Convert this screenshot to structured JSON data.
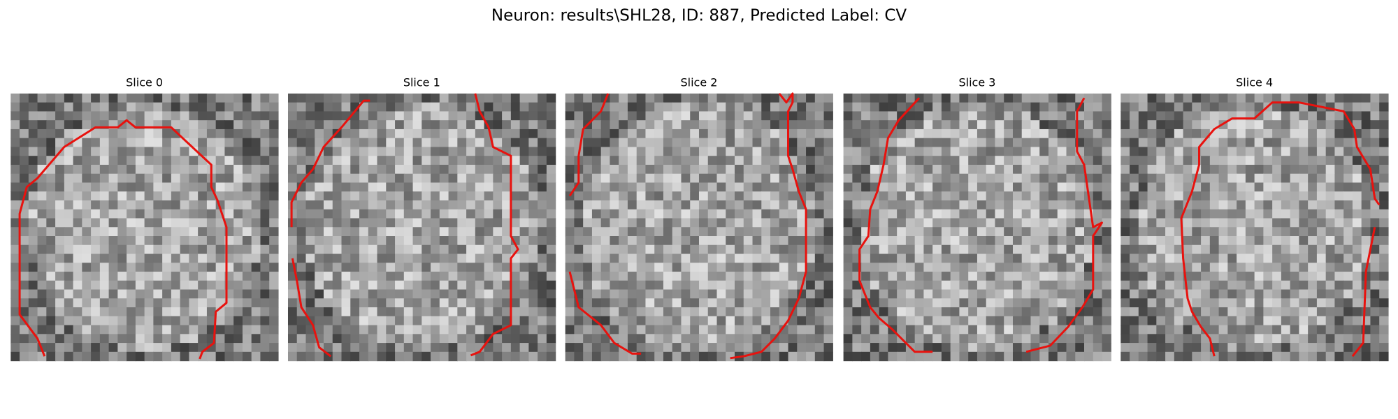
{
  "title": "Neuron: results\\SHL28, ID: 887, Predicted Label: CV",
  "panels": [
    {
      "title": "Slice 0"
    },
    {
      "title": "Slice 1"
    },
    {
      "title": "Slice 2"
    },
    {
      "title": "Slice 3"
    },
    {
      "title": "Slice 4"
    }
  ]
}
